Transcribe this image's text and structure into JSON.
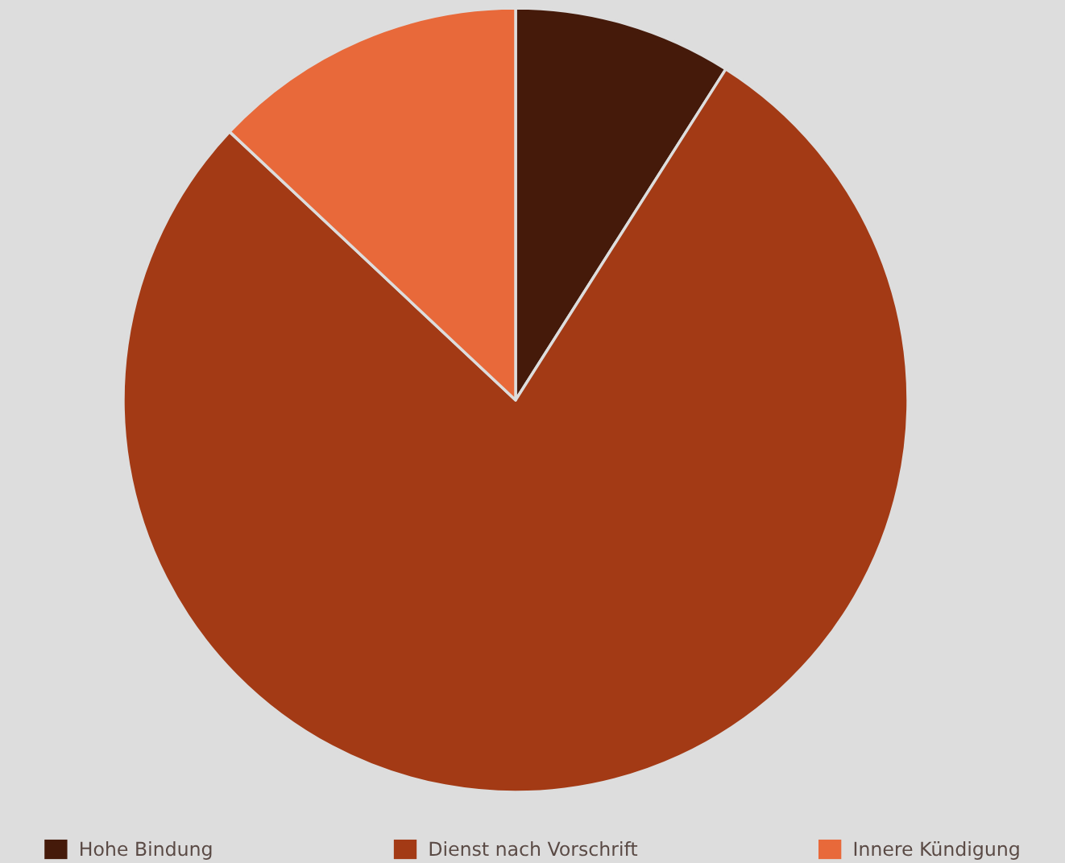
{
  "chart_data": {
    "type": "pie",
    "categories": [
      "Hohe Bindung",
      "Dienst nach Vorschrift",
      "Innere Kündigung"
    ],
    "values": [
      9,
      78,
      13
    ],
    "colors": [
      "#451a0a",
      "#a33a15",
      "#e8693a"
    ],
    "legend": "bottom"
  }
}
